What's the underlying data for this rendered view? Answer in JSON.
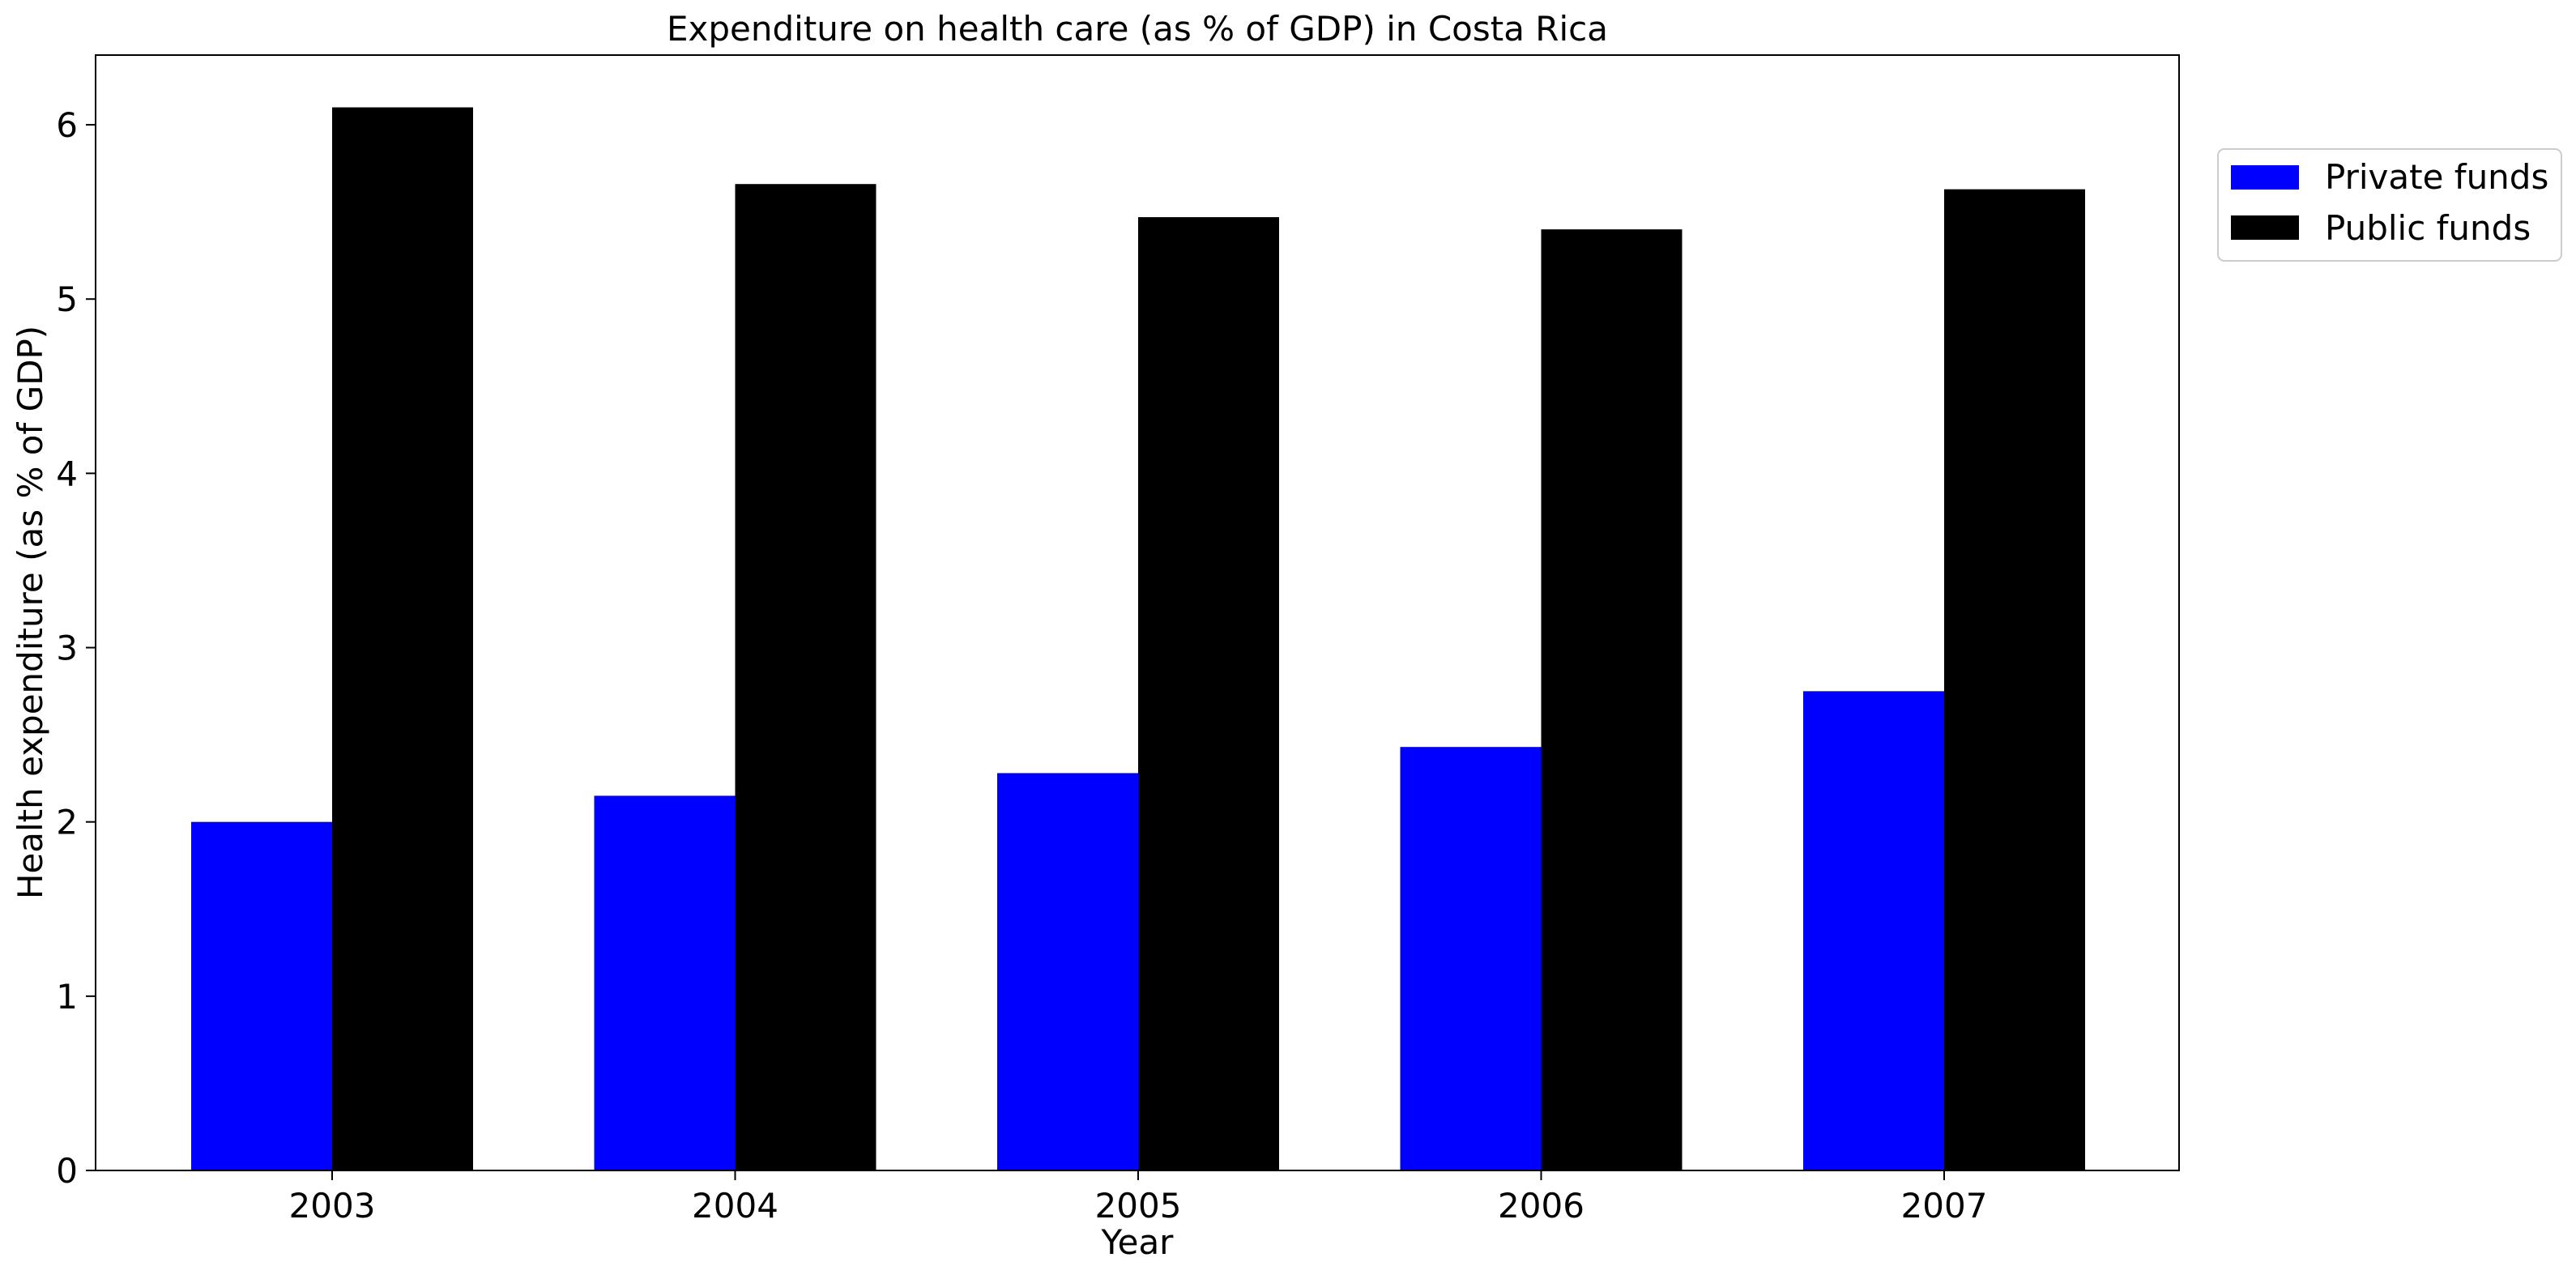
{
  "chart_data": {
    "type": "bar",
    "title": "Expenditure on health care (as % of GDP) in Costa Rica",
    "xlabel": "Year",
    "ylabel": "Health expenditure (as % of GDP)",
    "categories": [
      "2003",
      "2004",
      "2005",
      "2006",
      "2007"
    ],
    "series": [
      {
        "name": "Private funds",
        "color": "#0000ff",
        "values": [
          2.0,
          2.15,
          2.28,
          2.43,
          2.75
        ]
      },
      {
        "name": "Public funds",
        "color": "#000000",
        "values": [
          6.1,
          5.66,
          5.47,
          5.4,
          5.63
        ]
      }
    ],
    "ylim": [
      0,
      6.4
    ],
    "yticks": [
      "0",
      "1",
      "2",
      "3",
      "4",
      "5",
      "6"
    ],
    "grid": false,
    "legend_position": "upper right, outside plot area"
  }
}
